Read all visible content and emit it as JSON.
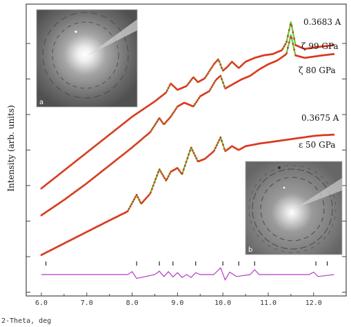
{
  "chart_data": {
    "type": "line",
    "title": "",
    "xlabel": "2-Theta, deg",
    "ylabel": "Intensity (arb. units)",
    "xlim": [
      5.8,
      12.55
    ],
    "xticks": [
      "6.0",
      "7.0",
      "8.0",
      "9.0",
      "10.0",
      "11.0",
      "12.0"
    ],
    "colors": {
      "observed": "#e8281c",
      "calculated": "#52d43a",
      "difference": "#b43cc8",
      "frame": "#444444"
    },
    "series": [
      {
        "label": "ζ 99 GPa",
        "x": [
          6.0,
          6.5,
          7.0,
          7.5,
          8.0,
          8.5,
          8.75,
          8.85,
          9.0,
          9.2,
          9.35,
          9.45,
          9.6,
          9.8,
          9.9,
          10.0,
          10.1,
          10.2,
          10.35,
          10.5,
          10.7,
          10.9,
          11.1,
          11.3,
          11.4,
          11.5,
          11.6,
          11.8,
          12.0,
          12.2,
          12.45
        ],
        "y": [
          0.28,
          0.35,
          0.42,
          0.49,
          0.56,
          0.62,
          0.655,
          0.69,
          0.665,
          0.68,
          0.715,
          0.695,
          0.71,
          0.765,
          0.785,
          0.74,
          0.755,
          0.775,
          0.75,
          0.775,
          0.79,
          0.8,
          0.805,
          0.82,
          0.85,
          0.93,
          0.84,
          0.825,
          0.83,
          0.835,
          0.84
        ]
      },
      {
        "label": "ζ 80 GPa",
        "x": [
          6.0,
          6.5,
          7.0,
          7.5,
          8.0,
          8.4,
          8.6,
          8.7,
          8.85,
          9.0,
          9.15,
          9.35,
          9.5,
          9.7,
          9.85,
          9.95,
          10.05,
          10.2,
          10.4,
          10.6,
          10.8,
          11.0,
          11.2,
          11.4,
          11.5,
          11.6,
          11.8,
          12.0,
          12.2,
          12.45
        ],
        "y": [
          0.175,
          0.235,
          0.3,
          0.37,
          0.44,
          0.5,
          0.555,
          0.53,
          0.56,
          0.6,
          0.615,
          0.6,
          0.64,
          0.66,
          0.705,
          0.72,
          0.67,
          0.685,
          0.705,
          0.72,
          0.745,
          0.765,
          0.78,
          0.805,
          0.88,
          0.8,
          0.79,
          0.795,
          0.8,
          0.805
        ]
      },
      {
        "label": "ε 50 GPa",
        "x": [
          6.0,
          6.5,
          7.0,
          7.5,
          7.9,
          8.1,
          8.2,
          8.4,
          8.6,
          8.75,
          8.85,
          9.0,
          9.1,
          9.3,
          9.45,
          9.6,
          9.8,
          9.95,
          10.05,
          10.2,
          10.35,
          10.5,
          10.65,
          10.8,
          11.0,
          11.2,
          11.4,
          11.6,
          11.8,
          12.0,
          12.2,
          12.45
        ],
        "y": [
          0.02,
          0.065,
          0.11,
          0.155,
          0.19,
          0.255,
          0.22,
          0.26,
          0.355,
          0.31,
          0.345,
          0.36,
          0.335,
          0.44,
          0.385,
          0.395,
          0.425,
          0.48,
          0.425,
          0.445,
          0.43,
          0.445,
          0.45,
          0.455,
          0.46,
          0.465,
          0.47,
          0.475,
          0.48,
          0.485,
          0.488,
          0.49
        ]
      }
    ],
    "reflection_ticks": [
      6.1,
      8.1,
      8.6,
      8.9,
      9.4,
      10.0,
      10.35,
      10.7,
      12.05,
      12.3
    ],
    "difference": {
      "x": [
        6.0,
        7.9,
        8.0,
        8.1,
        8.5,
        8.6,
        8.7,
        8.8,
        8.9,
        9.0,
        9.1,
        9.2,
        9.3,
        9.4,
        9.5,
        9.8,
        9.95,
        10.05,
        10.15,
        10.3,
        10.6,
        10.7,
        10.8,
        11.0,
        11.9,
        12.0,
        12.1,
        12.45
      ],
      "y": [
        0,
        0,
        0.006,
        -0.008,
        0,
        0.007,
        -0.004,
        0.006,
        -0.005,
        0.004,
        -0.006,
        0,
        -0.006,
        0.004,
        0,
        0,
        0.014,
        -0.011,
        0.005,
        -0.004,
        0,
        0.01,
        0,
        0,
        0,
        0.005,
        -0.004,
        0
      ]
    },
    "annotations": [
      {
        "text": "0.3683 A"
      },
      {
        "text": "ζ 99 GPa"
      },
      {
        "text": "ζ 80 GPa"
      },
      {
        "text": "0.3675 A"
      },
      {
        "text": "ε 50 GPa"
      }
    ],
    "insets": [
      {
        "label": "a",
        "image": "diffraction-pattern"
      },
      {
        "label": "b",
        "image": "diffraction-pattern"
      }
    ]
  }
}
